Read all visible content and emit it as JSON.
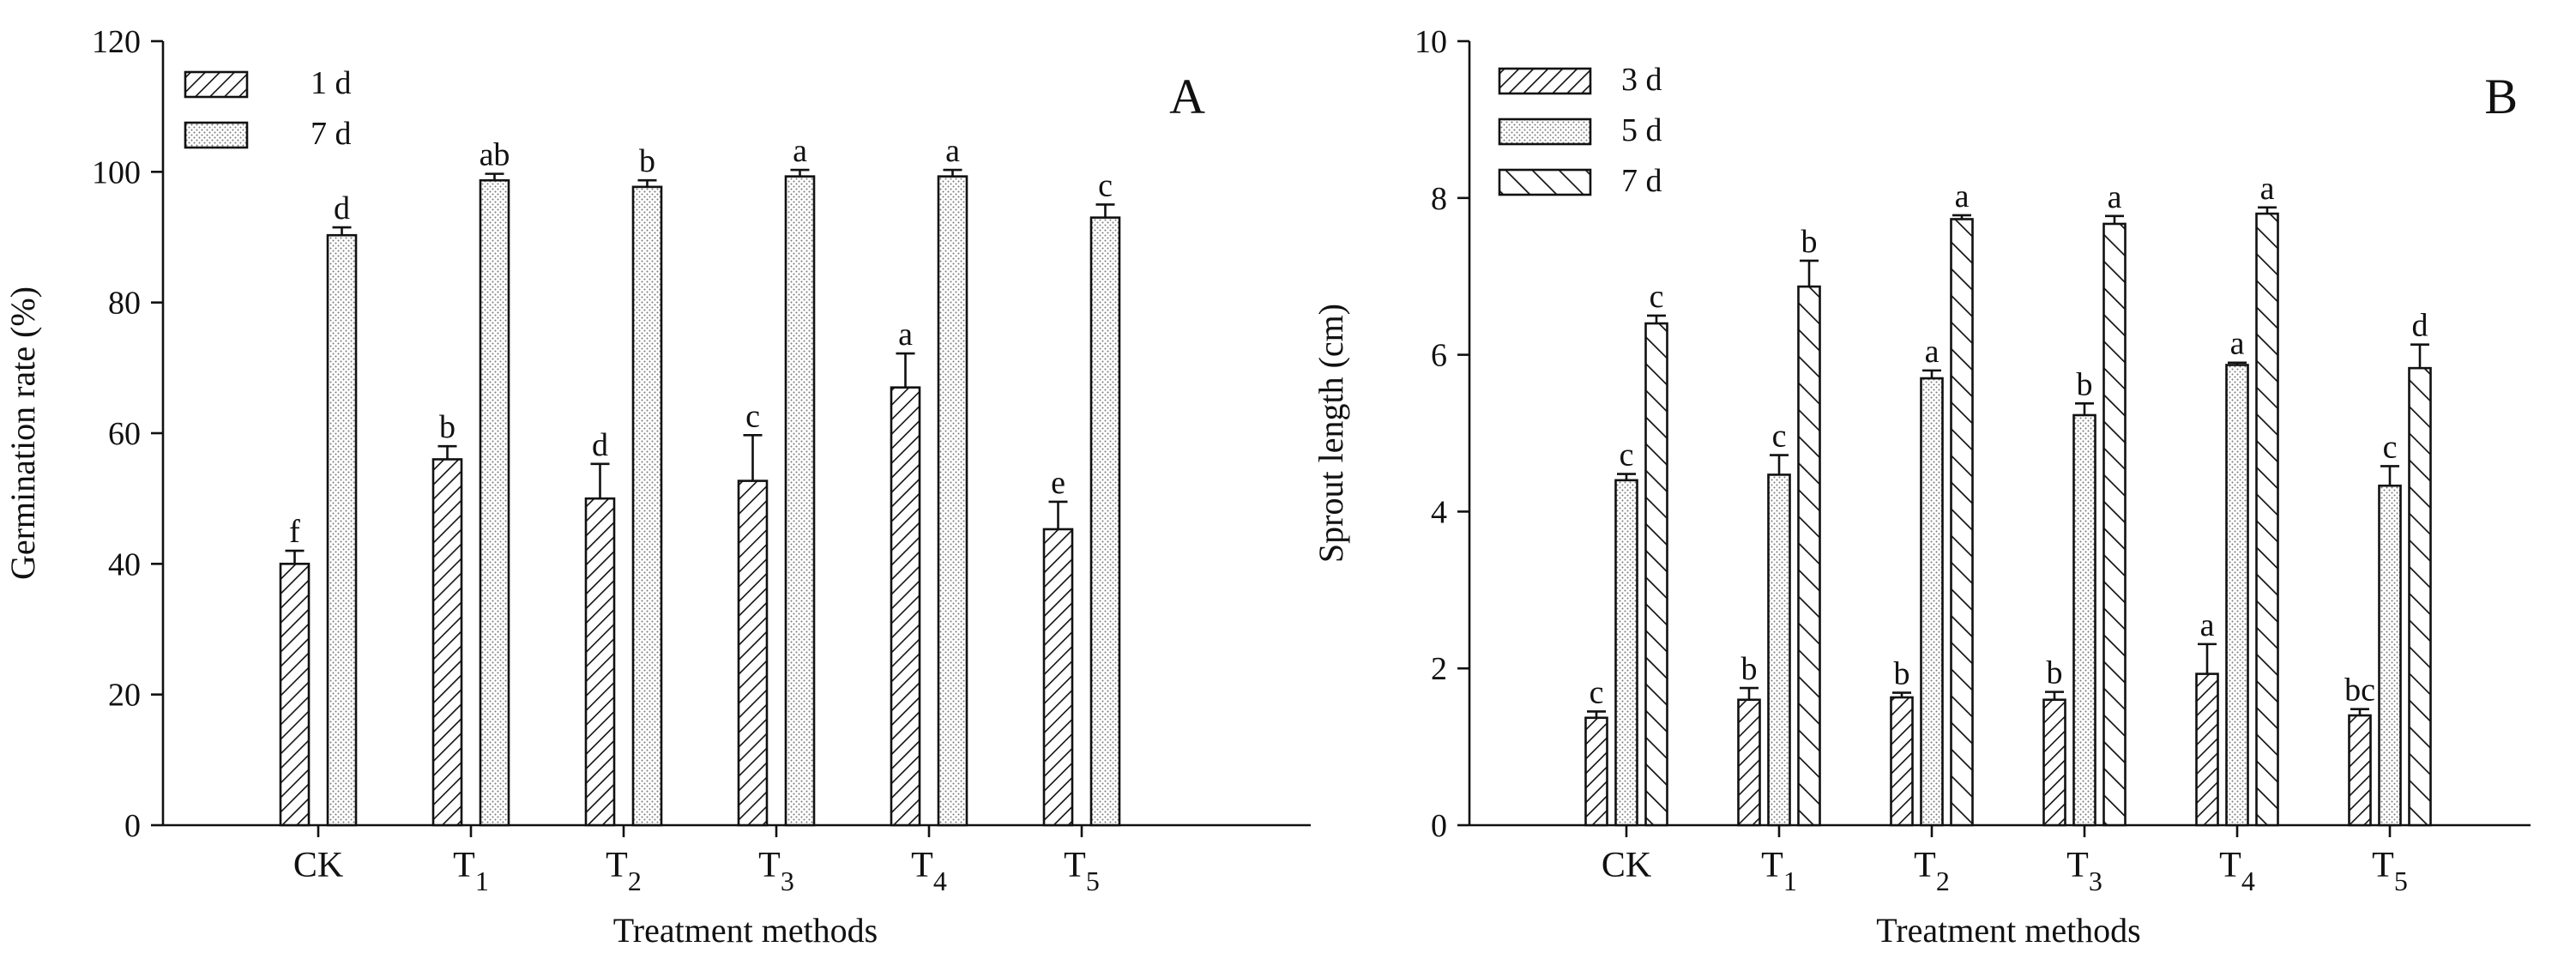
{
  "colors": {
    "ink": "#111111",
    "background": "#ffffff",
    "bar_fill": "#ffffff",
    "dots": "#777777"
  },
  "chart_data": [
    {
      "type": "bar",
      "panel_letter": "A",
      "categories": [
        "CK",
        "T1",
        "T2",
        "T3",
        "T4",
        "T5"
      ],
      "category_labels": [
        {
          "base": "CK",
          "sub": ""
        },
        {
          "base": "T",
          "sub": "1"
        },
        {
          "base": "T",
          "sub": "2"
        },
        {
          "base": "T",
          "sub": "3"
        },
        {
          "base": "T",
          "sub": "4"
        },
        {
          "base": "T",
          "sub": "5"
        }
      ],
      "xlabel": "Treatment methods",
      "ylabel": "Germination rate (%)",
      "ylim": [
        0,
        120
      ],
      "yticks": [
        "0",
        "20",
        "40",
        "60",
        "80",
        "100",
        "120"
      ],
      "legend_position": "top-left",
      "grid": false,
      "series": [
        {
          "name": "1 d",
          "pattern": "diag-back",
          "values": [
            40.0,
            56.0,
            50.0,
            52.7,
            67.0,
            45.3
          ],
          "errors": [
            2.0,
            2.0,
            5.3,
            7.0,
            5.2,
            4.2
          ],
          "letters": [
            "f",
            "b",
            "d",
            "c",
            "a",
            "e"
          ]
        },
        {
          "name": "7 d",
          "pattern": "dots",
          "values": [
            90.3,
            98.7,
            97.7,
            99.3,
            99.3,
            93.0
          ],
          "errors": [
            1.2,
            1.0,
            1.0,
            1.0,
            1.0,
            2.0
          ],
          "letters": [
            "d",
            "ab",
            "b",
            "a",
            "a",
            "c"
          ]
        }
      ]
    },
    {
      "type": "bar",
      "panel_letter": "B",
      "categories": [
        "CK",
        "T1",
        "T2",
        "T3",
        "T4",
        "T5"
      ],
      "category_labels": [
        {
          "base": "CK",
          "sub": ""
        },
        {
          "base": "T",
          "sub": "1"
        },
        {
          "base": "T",
          "sub": "2"
        },
        {
          "base": "T",
          "sub": "3"
        },
        {
          "base": "T",
          "sub": "4"
        },
        {
          "base": "T",
          "sub": "5"
        }
      ],
      "xlabel": "Treatment methods",
      "ylabel": "Sprout length (cm)",
      "ylim": [
        0,
        10
      ],
      "yticks": [
        "0",
        "2",
        "4",
        "6",
        "8",
        "10"
      ],
      "legend_position": "top-left",
      "grid": false,
      "series": [
        {
          "name": "3 d",
          "pattern": "diag-back",
          "values": [
            1.37,
            1.6,
            1.63,
            1.6,
            1.93,
            1.4
          ],
          "errors": [
            0.08,
            0.15,
            0.06,
            0.1,
            0.38,
            0.08
          ],
          "letters": [
            "c",
            "b",
            "b",
            "b",
            "a",
            "bc"
          ]
        },
        {
          "name": "5 d",
          "pattern": "dots",
          "values": [
            4.4,
            4.47,
            5.7,
            5.23,
            5.87,
            4.33
          ],
          "errors": [
            0.08,
            0.25,
            0.1,
            0.15,
            0.03,
            0.25
          ],
          "letters": [
            "c",
            "c",
            "a",
            "b",
            "a",
            "c"
          ]
        },
        {
          "name": "7 d",
          "pattern": "diag-forward",
          "values": [
            6.4,
            6.87,
            7.73,
            7.67,
            7.8,
            5.83
          ],
          "errors": [
            0.1,
            0.33,
            0.05,
            0.1,
            0.08,
            0.3
          ],
          "letters": [
            "c",
            "b",
            "a",
            "a",
            "a",
            "d"
          ]
        }
      ]
    }
  ]
}
